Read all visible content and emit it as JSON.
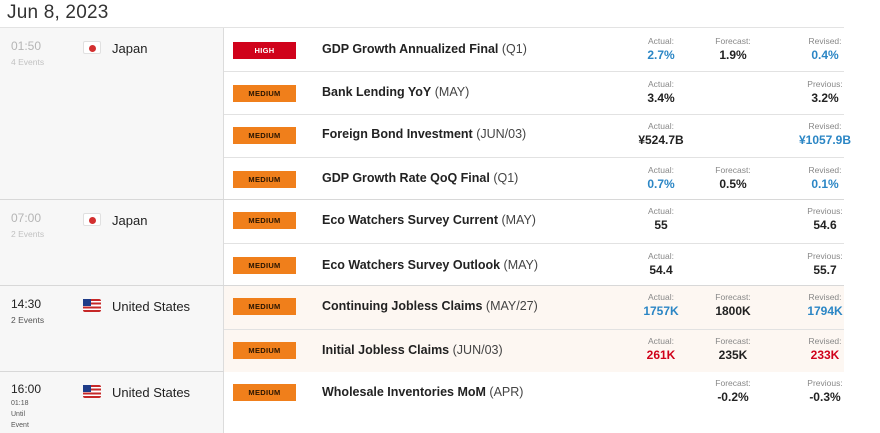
{
  "date": "Jun 8, 2023",
  "groups": [
    {
      "time": "01:50",
      "count": "4 Events",
      "country": "Japan",
      "flag": "jp",
      "events": [
        {
          "impact": "HIGH",
          "name": "GDP Growth Annualized Final",
          "period": "(Q1)",
          "actual_label": "Actual:",
          "actual": "2.7%",
          "forecast_label": "Forecast:",
          "forecast": "1.9%",
          "other_label": "Revised:",
          "other": "0.4%"
        },
        {
          "impact": "MEDIUM",
          "name": "Bank Lending YoY",
          "period": "(MAY)",
          "actual_label": "Actual:",
          "actual": "3.4%",
          "forecast_label": "",
          "forecast": "",
          "other_label": "Previous:",
          "other": "3.2%"
        },
        {
          "impact": "MEDIUM",
          "name": "Foreign Bond Investment",
          "period": "(JUN/03)",
          "actual_label": "Actual:",
          "actual": "¥524.7B",
          "forecast_label": "",
          "forecast": "",
          "other_label": "Revised:",
          "other": "¥1057.9B"
        },
        {
          "impact": "MEDIUM",
          "name": "GDP Growth Rate QoQ Final",
          "period": "(Q1)",
          "actual_label": "Actual:",
          "actual": "0.7%",
          "forecast_label": "Forecast:",
          "forecast": "0.5%",
          "other_label": "Revised:",
          "other": "0.1%"
        }
      ]
    },
    {
      "time": "07:00",
      "count": "2 Events",
      "country": "Japan",
      "flag": "jp",
      "events": [
        {
          "impact": "MEDIUM",
          "name": "Eco Watchers Survey Current",
          "period": "(MAY)",
          "actual_label": "Actual:",
          "actual": "55",
          "forecast_label": "",
          "forecast": "",
          "other_label": "Previous:",
          "other": "54.6"
        },
        {
          "impact": "MEDIUM",
          "name": "Eco Watchers Survey Outlook",
          "period": "(MAY)",
          "actual_label": "Actual:",
          "actual": "54.4",
          "forecast_label": "",
          "forecast": "",
          "other_label": "Previous:",
          "other": "55.7"
        }
      ]
    },
    {
      "time": "14:30",
      "count": "2 Events",
      "country": "United States",
      "flag": "us",
      "events": [
        {
          "impact": "MEDIUM",
          "name": "Continuing Jobless Claims",
          "period": "(MAY/27)",
          "actual_label": "Actual:",
          "actual": "1757K",
          "forecast_label": "Forecast:",
          "forecast": "1800K",
          "other_label": "Revised:",
          "other": "1794K"
        },
        {
          "impact": "MEDIUM",
          "name": "Initial Jobless Claims",
          "period": "(JUN/03)",
          "actual_label": "Actual:",
          "actual": "261K",
          "forecast_label": "Forecast:",
          "forecast": "235K",
          "other_label": "Revised:",
          "other": "233K"
        }
      ]
    },
    {
      "time": "16:00",
      "until_line1": "01:18",
      "until_line2": "Until",
      "until_line3": "Event",
      "country": "United States",
      "flag": "us",
      "events": [
        {
          "impact": "MEDIUM",
          "name": "Wholesale Inventories MoM",
          "period": "(APR)",
          "actual_label": "",
          "actual": "",
          "forecast_label": "Forecast:",
          "forecast": "-0.2%",
          "other_label": "Previous:",
          "other": "-0.3%"
        }
      ]
    }
  ],
  "colors": {
    "high": "#d0021b",
    "medium": "#f07f1b",
    "better": "#2b86c5",
    "worse": "#d0021b"
  }
}
